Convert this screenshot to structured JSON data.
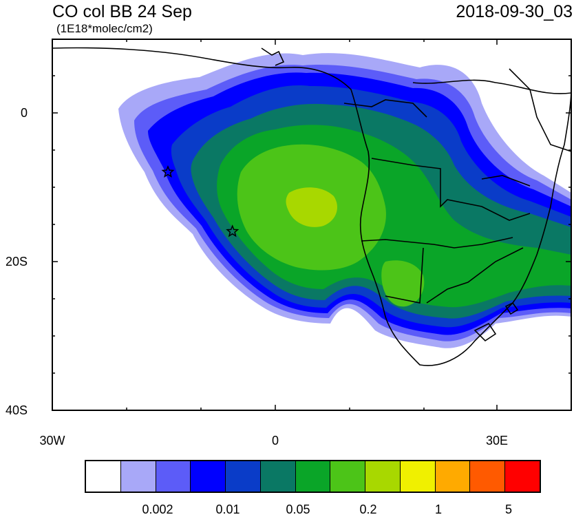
{
  "header": {
    "title": "CO col BB 24 Sep",
    "units": "(1E18*molec/cm2)",
    "timestamp": "2018-09-30_03"
  },
  "axes": {
    "lat_labels": [
      "0",
      "20S",
      "40S"
    ],
    "lon_labels": [
      "30W",
      "0",
      "30E"
    ]
  },
  "markers": {
    "type": "star",
    "locations": [
      {
        "lon": -14.4,
        "lat": -7.9
      },
      {
        "lon": -5.7,
        "lat": -15.9
      }
    ]
  },
  "colorbar": {
    "colors": [
      "#ffffff",
      "#a8a8f8",
      "#5c5cf8",
      "#0000ff",
      "#0a3cc8",
      "#0a7864",
      "#0aa528",
      "#4cc418",
      "#a8d800",
      "#f0f000",
      "#ffaa00",
      "#ff5a00",
      "#ff0000"
    ],
    "labels": [
      "0.002",
      "0.01",
      "0.05",
      "0.2",
      "1",
      "5"
    ]
  }
}
